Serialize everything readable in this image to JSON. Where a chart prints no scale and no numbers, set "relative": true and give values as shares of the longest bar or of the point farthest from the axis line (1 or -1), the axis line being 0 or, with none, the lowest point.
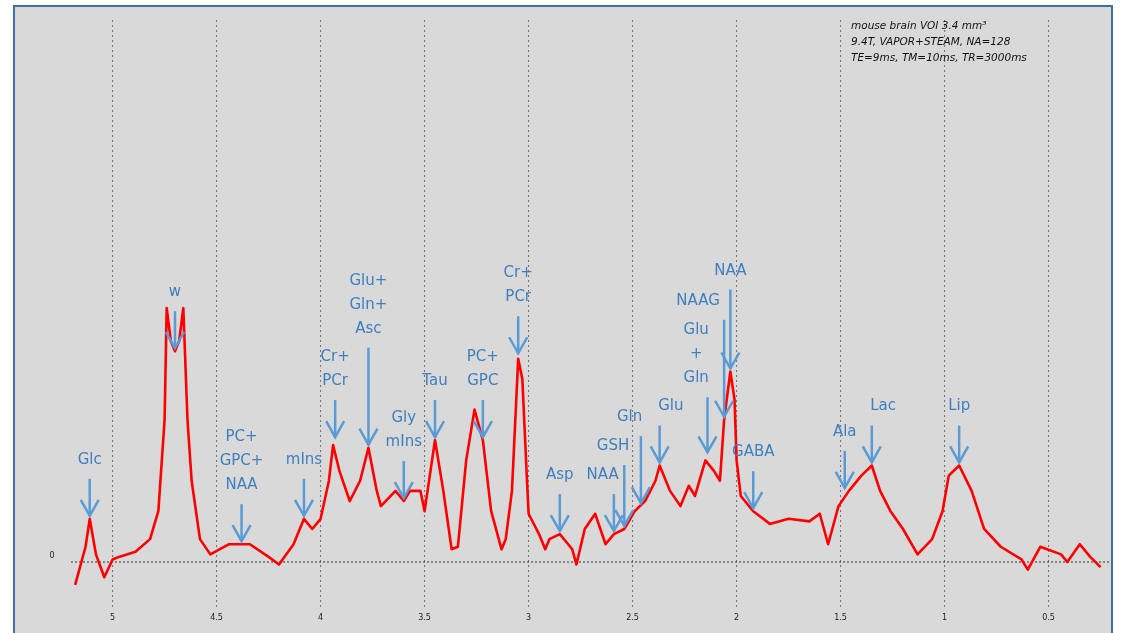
{
  "chart_data": {
    "type": "line",
    "relative": true,
    "grid": "x",
    "marker": "none",
    "line_style": "solid",
    "xlim": [
      5.2,
      0.2
    ],
    "xticks": [
      5,
      4.5,
      4,
      3.5,
      3,
      2.5,
      2,
      1.5,
      1,
      0.5
    ],
    "ref_lines": [
      {
        "axis": "y",
        "value": 0,
        "label": "0",
        "line_style": "dotted",
        "color": "#333333"
      }
    ],
    "series": [
      {
        "color": "#ff0000",
        "x": [
          5.18,
          5.13,
          5.11,
          5.08,
          5.04,
          5.0,
          4.97,
          4.89,
          4.82,
          4.78,
          4.75,
          4.74,
          4.72,
          4.7,
          4.68,
          4.66,
          4.64,
          4.62,
          4.58,
          4.53,
          4.44,
          4.34,
          4.25,
          4.2,
          4.13,
          4.08,
          4.04,
          4.0,
          3.96,
          3.94,
          3.91,
          3.86,
          3.81,
          3.77,
          3.73,
          3.71,
          3.64,
          3.6,
          3.57,
          3.52,
          3.5,
          3.45,
          3.41,
          3.37,
          3.34,
          3.3,
          3.26,
          3.22,
          3.18,
          3.13,
          3.11,
          3.08,
          3.05,
          3.03,
          3.01,
          3.0,
          2.95,
          2.92,
          2.9,
          2.85,
          2.79,
          2.77,
          2.73,
          2.68,
          2.63,
          2.59,
          2.54,
          2.49,
          2.44,
          2.39,
          2.37,
          2.32,
          2.27,
          2.23,
          2.2,
          2.15,
          2.11,
          2.08,
          2.06,
          2.03,
          2.01,
          2.0,
          1.98,
          1.92,
          1.84,
          1.75,
          1.65,
          1.6,
          1.56,
          1.51,
          1.46,
          1.4,
          1.35,
          1.31,
          1.26,
          1.2,
          1.13,
          1.06,
          1.01,
          0.98,
          0.93,
          0.87,
          0.81,
          0.73,
          0.63,
          0.6,
          0.54,
          0.44,
          0.41,
          0.35,
          0.3,
          0.25
        ],
        "values": [
          -0.09,
          0.06,
          0.17,
          0.03,
          -0.06,
          0.01,
          0.02,
          0.04,
          0.09,
          0.2,
          0.56,
          1.0,
          0.87,
          0.83,
          0.87,
          1.0,
          0.56,
          0.32,
          0.09,
          0.03,
          0.07,
          0.07,
          0.02,
          -0.01,
          0.07,
          0.17,
          0.13,
          0.17,
          0.32,
          0.46,
          0.36,
          0.24,
          0.32,
          0.45,
          0.28,
          0.22,
          0.28,
          0.24,
          0.28,
          0.28,
          0.2,
          0.48,
          0.28,
          0.05,
          0.06,
          0.4,
          0.6,
          0.48,
          0.2,
          0.05,
          0.09,
          0.28,
          0.8,
          0.72,
          0.36,
          0.19,
          0.11,
          0.05,
          0.09,
          0.11,
          0.05,
          -0.01,
          0.13,
          0.19,
          0.07,
          0.11,
          0.13,
          0.2,
          0.24,
          0.32,
          0.38,
          0.28,
          0.22,
          0.3,
          0.26,
          0.4,
          0.36,
          0.32,
          0.56,
          0.75,
          0.64,
          0.4,
          0.26,
          0.2,
          0.15,
          0.17,
          0.16,
          0.19,
          0.07,
          0.22,
          0.28,
          0.34,
          0.38,
          0.28,
          0.2,
          0.13,
          0.03,
          0.09,
          0.2,
          0.34,
          0.38,
          0.28,
          0.13,
          0.06,
          0.01,
          -0.03,
          0.06,
          0.03,
          0.0,
          0.07,
          0.02,
          -0.02
        ]
      }
    ],
    "annotations": [
      {
        "text": "Glc",
        "x": 5.11,
        "y": 0.17
      },
      {
        "text": "w",
        "x": 4.7,
        "y": 0.83
      },
      {
        "text": "PC+\nGPC+\nNAA",
        "x": 4.38,
        "y": 0.07
      },
      {
        "text": "mIns",
        "x": 4.08,
        "y": 0.17
      },
      {
        "text": "Cr+\nPCr",
        "x": 3.93,
        "y": 0.48
      },
      {
        "text": "Glu+\nGln+\nAsc",
        "x": 3.77,
        "y": 0.45
      },
      {
        "text": "Gly\nmIns",
        "x": 3.6,
        "y": 0.24
      },
      {
        "text": "Tau",
        "x": 3.45,
        "y": 0.48
      },
      {
        "text": "PC+\nGPC",
        "x": 3.22,
        "y": 0.48
      },
      {
        "text": "Cr+\nPCr",
        "x": 3.05,
        "y": 0.81
      },
      {
        "text": "Asp",
        "x": 2.85,
        "y": 0.11
      },
      {
        "text": "NAA",
        "x": 2.59,
        "y": 0.11
      },
      {
        "text": "GSH",
        "x": 2.54,
        "y": 0.13
      },
      {
        "text": "Gln",
        "x": 2.46,
        "y": 0.22
      },
      {
        "text": "Glu",
        "x": 2.37,
        "y": 0.38
      },
      {
        "text": "Glu\n+\nGln",
        "x": 2.14,
        "y": 0.42
      },
      {
        "text": "NAAG",
        "x": 2.06,
        "y": 0.56
      },
      {
        "text": "NAA",
        "x": 2.03,
        "y": 0.75
      },
      {
        "text": "GABA",
        "x": 1.92,
        "y": 0.2
      },
      {
        "text": "Ala",
        "x": 1.48,
        "y": 0.28
      },
      {
        "text": "Lac",
        "x": 1.35,
        "y": 0.38
      },
      {
        "text": "Lip",
        "x": 0.93,
        "y": 0.38
      },
      "mouse brain VOI 3.4 mm³",
      "9.4T, VAPOR+STEAM, NA=128",
      "TE=9ms, TM=10ms, TR=3000ms"
    ]
  }
}
